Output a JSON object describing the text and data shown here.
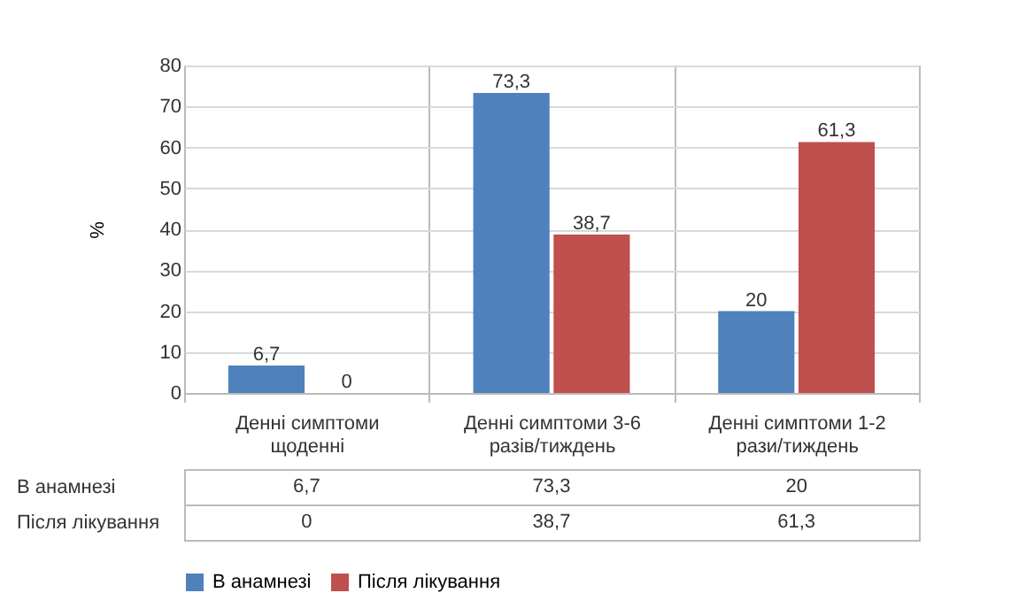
{
  "chart_data": {
    "type": "bar",
    "ylabel": "%",
    "categories": [
      "Денні симптоми щоденні",
      "Денні симптоми 3-6 разів/тиждень",
      "Денні симптоми 1-2 рази/тиждень"
    ],
    "series": [
      {
        "name": "В анамнезі",
        "color": "#4f81bd",
        "values": [
          6.7,
          73.3,
          20
        ],
        "value_labels": [
          "6,7",
          "73,3",
          "20"
        ]
      },
      {
        "name": "Після лікування",
        "color": "#c0504d",
        "values": [
          0,
          38.7,
          61.3
        ],
        "value_labels": [
          "0",
          "38,7",
          "61,3"
        ]
      }
    ],
    "ylim": [
      0,
      80
    ],
    "yticks": [
      0,
      10,
      20,
      30,
      40,
      50,
      60,
      70,
      80
    ],
    "grid": "y",
    "legend": "bottom"
  }
}
